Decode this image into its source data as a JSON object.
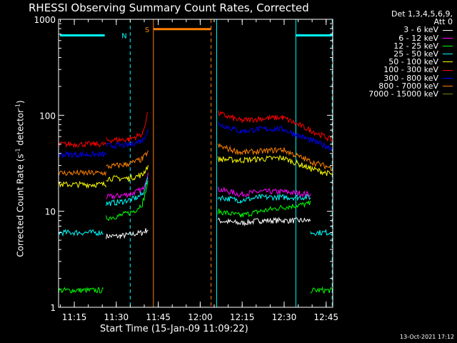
{
  "chart_data": {
    "type": "line",
    "title": "RHESSI Observing Summary Count Rates, Corrected",
    "xlabel": "Start Time (15-Jan-09 11:09:22)",
    "ylabel_main": "Corrected Count Rate (s",
    "ylabel_sup1": "-1",
    "ylabel_mid": " detector",
    "ylabel_sup2": "-1",
    "ylabel_end": ")",
    "yscale": "log",
    "ylim": [
      1,
      1000
    ],
    "xlim_minutes": [
      0,
      98
    ],
    "xtick_labels": [
      "11:15",
      "11:30",
      "11:45",
      "12:00",
      "12:15",
      "12:30",
      "12:45"
    ],
    "xtick_minutes": [
      5.63,
      20.63,
      35.63,
      50.63,
      65.63,
      80.63,
      95.63
    ],
    "ytick_labels": [
      "1",
      "10",
      "100",
      "1000"
    ],
    "ytick_values": [
      1,
      10,
      100,
      1000
    ],
    "legend_header": [
      "Det 1,3,4,5,6,9,",
      "Att 0"
    ],
    "series": [
      {
        "name": "3 - 6 keV",
        "color": "#ffffff",
        "segments": [
          [
            [
              17,
              5.5
            ],
            [
              22,
              5.5
            ],
            [
              30,
              6
            ],
            [
              32,
              6.5
            ]
          ],
          [
            [
              57,
              8
            ],
            [
              65,
              7.5
            ],
            [
              72,
              8
            ],
            [
              80,
              8
            ],
            [
              90,
              8
            ]
          ]
        ]
      },
      {
        "name": "6 - 12 keV",
        "color": "#ff00ff",
        "segments": [
          [
            [
              17,
              14
            ],
            [
              22,
              14.5
            ],
            [
              27,
              15.5
            ],
            [
              30,
              17
            ],
            [
              32,
              25
            ]
          ],
          [
            [
              57,
              17
            ],
            [
              65,
              15
            ],
            [
              72,
              16
            ],
            [
              80,
              16
            ],
            [
              90,
              15
            ]
          ]
        ]
      },
      {
        "name": "12 - 25 keV",
        "color": "#00ff00",
        "segments": [
          [
            [
              0,
              1.5
            ],
            [
              16,
              1.5
            ]
          ],
          [
            [
              17,
              8.5
            ],
            [
              22,
              9
            ],
            [
              27,
              10
            ],
            [
              30,
              12
            ],
            [
              32,
              20
            ]
          ],
          [
            [
              57,
              10
            ],
            [
              65,
              9
            ],
            [
              72,
              10
            ],
            [
              80,
              11
            ],
            [
              90,
              12
            ]
          ],
          [
            [
              90,
              1.5
            ],
            [
              98,
              1.5
            ]
          ]
        ]
      },
      {
        "name": "25 - 50 keV",
        "color": "#00ffff",
        "segments": [
          [
            [
              0,
              6
            ],
            [
              16,
              6
            ]
          ],
          [
            [
              17,
              12
            ],
            [
              22,
              12.5
            ],
            [
              27,
              13.5
            ],
            [
              30,
              15
            ],
            [
              32,
              22
            ]
          ],
          [
            [
              57,
              14
            ],
            [
              65,
              13
            ],
            [
              72,
              14
            ],
            [
              80,
              14
            ],
            [
              90,
              14
            ]
          ],
          [
            [
              90,
              6
            ],
            [
              98,
              6
            ]
          ]
        ]
      },
      {
        "name": "50 - 100 keV",
        "color": "#ffff00",
        "segments": [
          [
            [
              0,
              19
            ],
            [
              17,
              19
            ]
          ],
          [
            [
              17,
              22
            ],
            [
              25,
              22
            ],
            [
              30,
              24
            ],
            [
              32,
              30
            ]
          ],
          [
            [
              57,
              35
            ],
            [
              65,
              34
            ],
            [
              72,
              35
            ],
            [
              80,
              36
            ],
            [
              90,
              28
            ],
            [
              98,
              24
            ]
          ]
        ]
      },
      {
        "name": "100 - 300 keV",
        "color": "#ff0000",
        "segments": [
          [
            [
              0,
              50
            ],
            [
              17,
              50
            ]
          ],
          [
            [
              17,
              55
            ],
            [
              25,
              56
            ],
            [
              30,
              64
            ],
            [
              32,
              110
            ]
          ],
          [
            [
              57,
              105
            ],
            [
              65,
              88
            ],
            [
              72,
              92
            ],
            [
              80,
              95
            ],
            [
              90,
              70
            ],
            [
              98,
              55
            ]
          ]
        ]
      },
      {
        "name": "300 - 800 keV",
        "color": "#0000ff",
        "segments": [
          [
            [
              0,
              39
            ],
            [
              17,
              39
            ]
          ],
          [
            [
              17,
              48
            ],
            [
              25,
              49
            ],
            [
              30,
              55
            ],
            [
              32,
              70
            ]
          ],
          [
            [
              57,
              82
            ],
            [
              65,
              68
            ],
            [
              72,
              72
            ],
            [
              80,
              72
            ],
            [
              90,
              55
            ],
            [
              98,
              45
            ]
          ]
        ]
      },
      {
        "name": "800 - 7000 keV",
        "color": "#ff8000",
        "segments": [
          [
            [
              0,
              25
            ],
            [
              17,
              25
            ]
          ],
          [
            [
              17,
              29
            ],
            [
              25,
              31
            ],
            [
              30,
              35
            ],
            [
              32,
              42
            ]
          ],
          [
            [
              57,
              48
            ],
            [
              65,
              41
            ],
            [
              72,
              42
            ],
            [
              80,
              44
            ],
            [
              90,
              33
            ],
            [
              98,
              28
            ]
          ]
        ]
      },
      {
        "name": "7000 - 15000 keV",
        "color": "#808000",
        "segments": []
      }
    ],
    "annotations": [
      {
        "label": "N",
        "color": "#00ffff",
        "x": 25.6,
        "y": 680,
        "x_start": 0,
        "x_end": 25.6,
        "x_marker_start": 0.5,
        "x_marker_end": 16.5
      },
      {
        "label": "S",
        "color": "#ff8000",
        "x": 33.9,
        "y": 790,
        "x_start": 33.9,
        "x_end": 54.5
      },
      {
        "label": "",
        "color": "#00ffff",
        "x": 98,
        "y": 680,
        "x_start": 84.8,
        "x_end": 98,
        "x_marker_start": 84.8,
        "x_marker_end": 98
      }
    ],
    "vlines": [
      {
        "x": 25.6,
        "color": "#00ffff",
        "style": "dashed"
      },
      {
        "x": 33.9,
        "color": "#ff8000",
        "style": "solid"
      },
      {
        "x": 54.5,
        "color": "#ff8000",
        "style": "dashed"
      },
      {
        "x": 56.5,
        "color": "#00ffff",
        "style": "solid"
      },
      {
        "x": 84.8,
        "color": "#00ffff",
        "style": "solid"
      },
      {
        "x": 97.8,
        "color": "#00ffff",
        "style": "dashed"
      }
    ],
    "legend_placement": "top-right-outside"
  },
  "timestamp": "13-Oct-2021 17:12"
}
